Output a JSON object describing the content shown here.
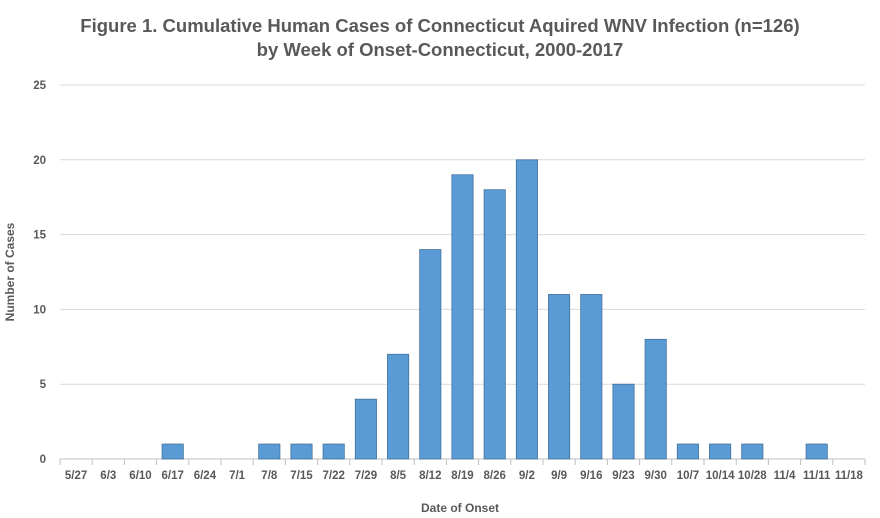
{
  "chart_data": {
    "type": "bar",
    "title_line1": "Figure 1. Cumulative Human Cases of Connecticut Aquired WNV Infection (n=126)",
    "title_line2": "by Week of Onset-Connecticut, 2000-2017",
    "xlabel": "Date of Onset",
    "ylabel": "Number of Cases",
    "ylim": [
      0,
      25
    ],
    "yticks": [
      0,
      5,
      10,
      15,
      20,
      25
    ],
    "grid": true,
    "bar_color": "#5b9bd5",
    "categories": [
      "5/27",
      "6/3",
      "6/10",
      "6/17",
      "6/24",
      "7/1",
      "7/8",
      "7/15",
      "7/22",
      "7/29",
      "8/5",
      "8/12",
      "8/19",
      "8/26",
      "9/2",
      "9/9",
      "9/16",
      "9/23",
      "9/30",
      "10/7",
      "10/14",
      "10/28",
      "11/4",
      "11/11",
      "11/18"
    ],
    "values": [
      0,
      0,
      0,
      1,
      0,
      0,
      1,
      1,
      1,
      4,
      7,
      14,
      19,
      18,
      20,
      11,
      11,
      5,
      8,
      1,
      1,
      1,
      0,
      1,
      0
    ]
  }
}
